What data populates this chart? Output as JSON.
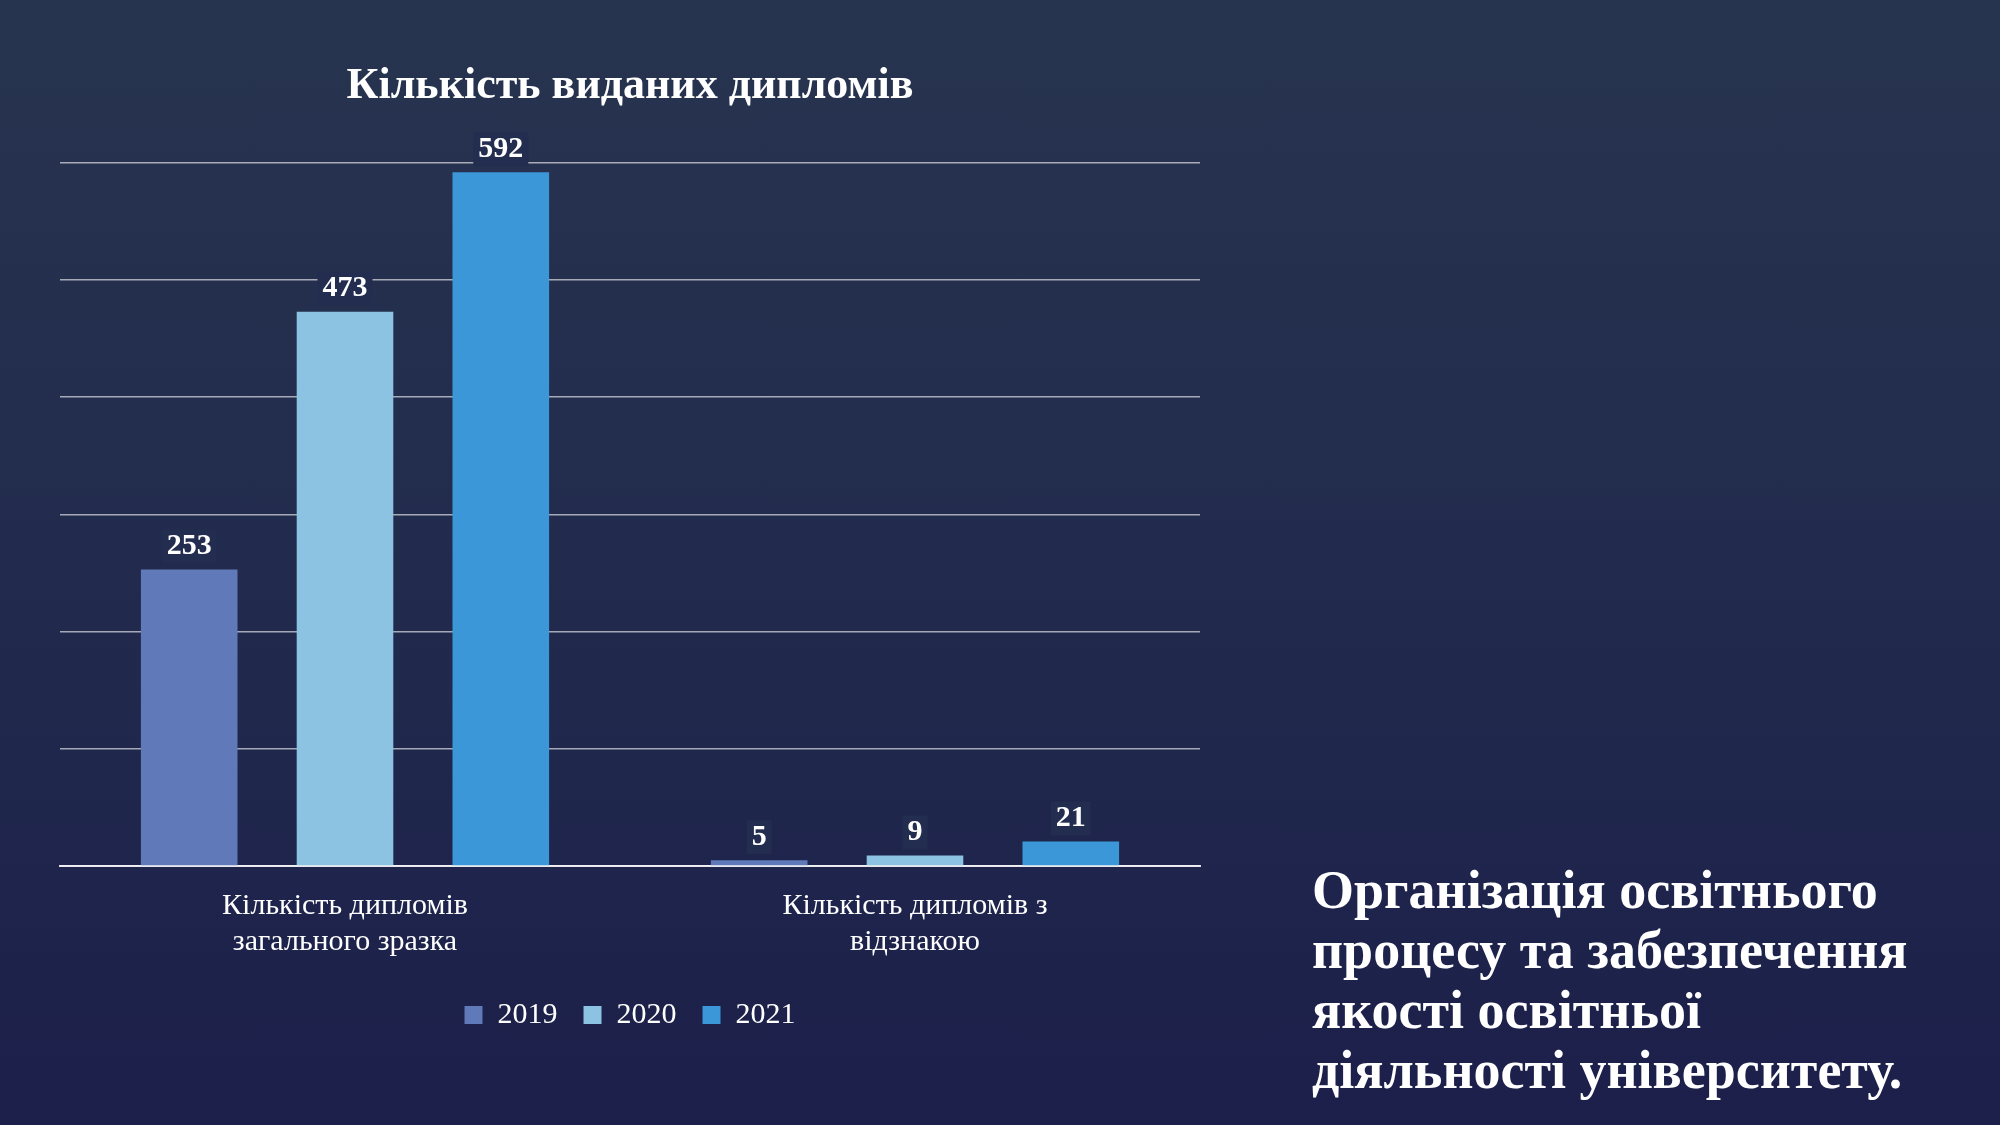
{
  "chart_data": {
    "type": "bar",
    "title": "Кількість виданих дипломів",
    "categories": [
      "Кількість дипломів загального зразка",
      "Кількість дипломів з відзнакою"
    ],
    "series": [
      {
        "name": "2019",
        "color": "#6079b8",
        "values": [
          253,
          5
        ]
      },
      {
        "name": "2020",
        "color": "#8cc2e2",
        "values": [
          473,
          9
        ]
      },
      {
        "name": "2021",
        "color": "#3b97d8",
        "values": [
          592,
          21
        ]
      }
    ],
    "ylim": [
      0,
      600
    ],
    "yticks": [
      {
        "value": 0,
        "label": null
      },
      {
        "value": 100,
        "label": null
      },
      {
        "value": 200,
        "label": null
      },
      {
        "value": 300,
        "label": null
      },
      {
        "value": 400,
        "label": null
      },
      {
        "value": 500,
        "label": null
      },
      {
        "value": 600,
        "label": null
      }
    ],
    "tick_labels": "x",
    "grid": "y",
    "legend": "bottom",
    "data_labels": true,
    "annotations": [
      "Організація освітнього процесу та забезпечення якості освітньої діяльності університету."
    ]
  }
}
